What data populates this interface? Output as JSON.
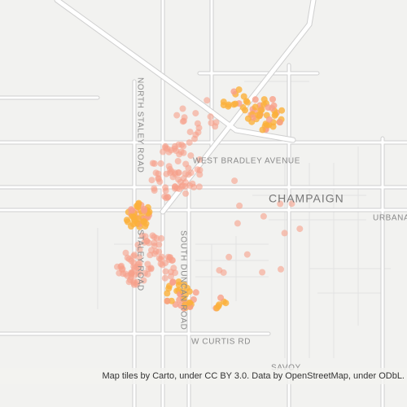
{
  "map": {
    "labels": {
      "north_staley_road": "NORTH STALEY ROAD",
      "staley_road": "STALEY ROAD",
      "west_bradley_avenue": "WEST BRADLEY AVENUE",
      "champaign": "CHAMPAIGN",
      "urbana": "URBANA",
      "south_duncan_road": "SOUTH DUNCAN ROAD",
      "w_curtis_rd": "W CURTIS RD",
      "savoy": "SAVOY"
    },
    "attribution": "Map tiles by Carto, under CC BY 3.0. Data by OpenStreetMap, under ODbL."
  }
}
